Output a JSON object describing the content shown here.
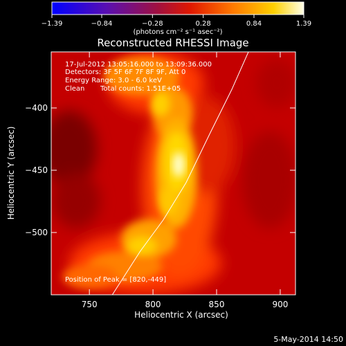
{
  "colorbar": {
    "tick_labels": [
      "-1.39",
      "-0.84",
      "-0.28",
      "0.28",
      "0.84",
      "1.39"
    ],
    "tick_values": [
      -1.39,
      -0.84,
      -0.28,
      0.28,
      0.84,
      1.39
    ],
    "range": [
      -1.39,
      1.39
    ],
    "unit_label": "(photons cm⁻² s⁻¹ asec⁻²)",
    "colormap": "blue-purple-red-yellow-white (RHESSI)"
  },
  "chart_data": {
    "type": "heatmap",
    "title": "Reconstructed RHESSI Image",
    "xlabel": "Heliocentric X (arcsec)",
    "ylabel": "Heliocentric Y (arcsec)",
    "xlim": [
      720,
      912
    ],
    "ylim": [
      -550,
      -355
    ],
    "x_ticks": [
      750,
      800,
      850,
      900
    ],
    "y_ticks": [
      -400,
      -450,
      -500
    ],
    "annotations": [
      "17-Jul-2012 13:05:16.000 to 13:09:36.000",
      "Detectors: 3F 5F 6F 7F 8F 9F, Att 0",
      "Energy Range: 3.0 - 6.0 keV",
      "Clean",
      "Total counts: 1.51E+05"
    ],
    "peak_label": "Position of Peak = [820,-449]",
    "peak": [
      820,
      -449
    ],
    "limb_curve": [
      [
        768,
        -550
      ],
      [
        790,
        -515
      ],
      [
        808,
        -490
      ],
      [
        826,
        -460
      ],
      [
        845,
        -420
      ],
      [
        862,
        -385
      ],
      [
        875,
        -355
      ]
    ],
    "grid": false
  },
  "footer": {
    "date": "5-May-2014 14:50"
  }
}
